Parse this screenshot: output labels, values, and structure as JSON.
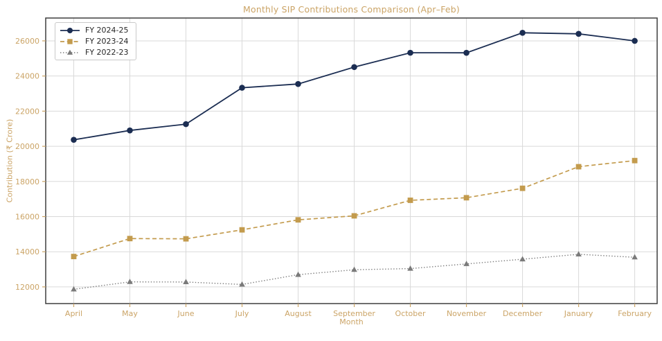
{
  "chart_data": {
    "type": "line",
    "title": "Monthly SIP Contributions Comparison (Apr–Feb)",
    "xlabel": "Month",
    "ylabel": "Contribution (₹ Crore)",
    "categories": [
      "April",
      "May",
      "June",
      "July",
      "August",
      "September",
      "October",
      "November",
      "December",
      "January",
      "February"
    ],
    "series": [
      {
        "name": "FY 2024-25",
        "values": [
          20371,
          20904,
          21262,
          23332,
          23547,
          24509,
          25323,
          25320,
          26459,
          26400,
          25999
        ],
        "color": "#1b2d52",
        "marker": "circle",
        "line_style": "solid"
      },
      {
        "name": "FY 2023-24",
        "values": [
          13728,
          14749,
          14734,
          15245,
          15814,
          16042,
          16928,
          17073,
          17610,
          18838,
          19187
        ],
        "color": "#c39b4d",
        "marker": "square",
        "line_style": "dashed"
      },
      {
        "name": "FY 2022-23",
        "values": [
          11863,
          12286,
          12276,
          12140,
          12693,
          12976,
          13041,
          13306,
          13573,
          13856,
          13686
        ],
        "color": "#7a7a7a",
        "marker": "triangle",
        "line_style": "dotted"
      }
    ],
    "yticks": [
      12000,
      14000,
      16000,
      18000,
      20000,
      22000,
      24000,
      26000
    ],
    "ylim": [
      11050,
      27300
    ],
    "grid": true,
    "legend_position": "upper left",
    "colors": {
      "axis_text": "#cba466",
      "grid": "#d9d9d9",
      "spine": "#3d3d3d",
      "background": "#ffffff",
      "legend_text": "#262626"
    }
  }
}
